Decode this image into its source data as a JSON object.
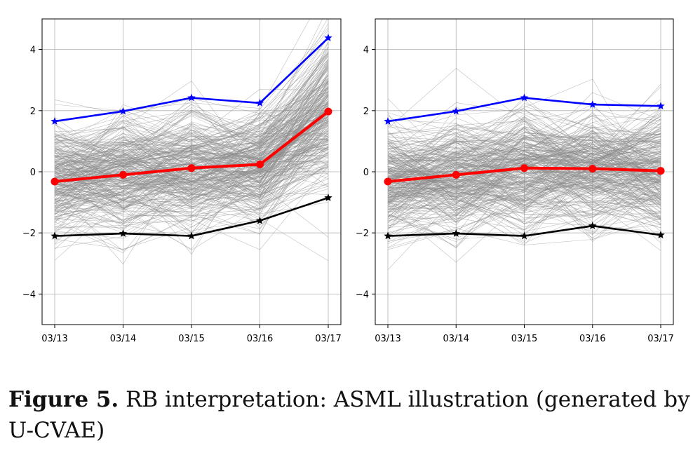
{
  "caption": {
    "label": "Figure 5.",
    "text": "RB interpretation: ASML illustration (generated by U-CVAE)"
  },
  "colors": {
    "background_series": "#8c8c8c",
    "upper": "#0000ff",
    "mean": "#ff0000",
    "lower": "#000000",
    "grid": "#b0b0b0"
  },
  "chart_data": [
    {
      "type": "line",
      "x": [
        "03/13",
        "03/14",
        "03/15",
        "03/16",
        "03/17"
      ],
      "yticks": [
        -4,
        -2,
        0,
        2,
        4
      ],
      "ylim": [
        -5,
        5
      ],
      "grid": true,
      "background_series": {
        "count": 300,
        "description_of_spread": "many thin gray paths between roughly -3 and 4",
        "std": [
          1.0,
          1.0,
          1.1,
          1.0,
          1.3
        ],
        "mean": [
          -0.3,
          -0.1,
          0.1,
          0.25,
          2.0
        ]
      },
      "series": [
        {
          "role": "upper",
          "color": "#0000ff",
          "marker": "star",
          "values": [
            1.65,
            1.98,
            2.42,
            2.25,
            4.38
          ]
        },
        {
          "role": "mean",
          "color": "#ff0000",
          "marker": "circle",
          "values": [
            -0.32,
            -0.1,
            0.12,
            0.24,
            1.97
          ]
        },
        {
          "role": "lower",
          "color": "#000000",
          "marker": "star",
          "values": [
            -2.1,
            -2.02,
            -2.1,
            -1.6,
            -0.85
          ]
        }
      ]
    },
    {
      "type": "line",
      "x": [
        "03/13",
        "03/14",
        "03/15",
        "03/16",
        "03/17"
      ],
      "yticks": [
        -4,
        -2,
        0,
        2,
        4
      ],
      "ylim": [
        -5,
        5
      ],
      "grid": true,
      "background_series": {
        "count": 300,
        "description_of_spread": "many thin gray paths between roughly -3.5 and 3.5",
        "std": [
          1.0,
          1.0,
          1.1,
          1.0,
          1.05
        ],
        "mean": [
          -0.3,
          -0.1,
          0.1,
          0.1,
          0.03
        ]
      },
      "series": [
        {
          "role": "upper",
          "color": "#0000ff",
          "marker": "star",
          "values": [
            1.65,
            1.98,
            2.42,
            2.2,
            2.15
          ]
        },
        {
          "role": "mean",
          "color": "#ff0000",
          "marker": "circle",
          "values": [
            -0.32,
            -0.1,
            0.12,
            0.1,
            0.03
          ]
        },
        {
          "role": "lower",
          "color": "#000000",
          "marker": "star",
          "values": [
            -2.1,
            -2.02,
            -2.1,
            -1.77,
            -2.07
          ]
        }
      ]
    }
  ]
}
